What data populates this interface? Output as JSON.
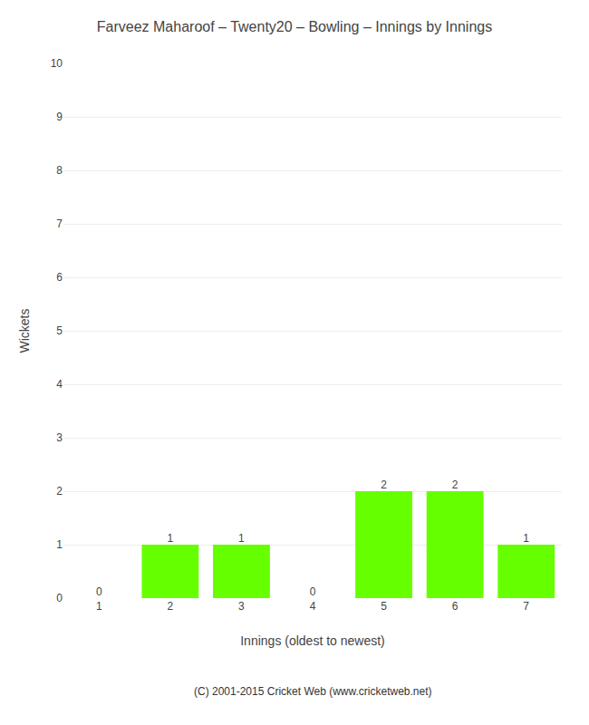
{
  "chart_data": {
    "type": "bar",
    "title": "Farveez Maharoof – Twenty20 – Bowling – Innings by Innings",
    "xlabel": "Innings (oldest to newest)",
    "ylabel": "Wickets",
    "categories": [
      "1",
      "2",
      "3",
      "4",
      "5",
      "6",
      "7"
    ],
    "values": [
      0,
      1,
      1,
      0,
      2,
      2,
      1
    ],
    "color": "#66ff00",
    "ylim": [
      0,
      10
    ],
    "yticks": [
      0,
      1,
      2,
      3,
      4,
      5,
      6,
      7,
      8,
      9,
      10
    ],
    "grid": true,
    "data_labels": true,
    "annotations": [
      "(C) 2001-2015 Cricket Web (www.cricketweb.net)"
    ]
  }
}
